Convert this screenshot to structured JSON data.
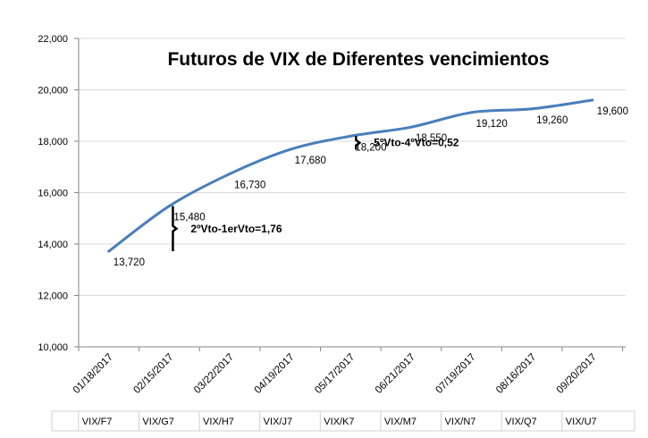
{
  "chart_data": {
    "type": "line",
    "title": "Futuros de VIX de Diferentes vencimientos",
    "xlabel": "",
    "ylabel": "",
    "ylim": [
      10,
      22
    ],
    "y_ticks": [
      10,
      12,
      14,
      16,
      18,
      20,
      22
    ],
    "y_tick_labels": [
      "10,000",
      "12,000",
      "14,000",
      "16,000",
      "18,000",
      "20,000",
      "22,000"
    ],
    "x_tick_labels": [
      "01/18/2017",
      "02/15/2017",
      "03/22/2017",
      "04/19/2017",
      "05/17/2017",
      "06/21/2017",
      "07/19/2017",
      "08/16/2017",
      "09/20/2017"
    ],
    "contracts": [
      "VIX/F7",
      "VIX/G7",
      "VIX/H7",
      "VIX/J7",
      "VIX/K7",
      "VIX/M7",
      "VIX/N7",
      "VIX/Q7",
      "VIX/U7"
    ],
    "series": [
      {
        "values": [
          13.72,
          15.48,
          16.73,
          17.68,
          18.2,
          18.55,
          19.12,
          19.26,
          19.6
        ],
        "data_labels": [
          "13,720",
          "15,480",
          "16,730",
          "17,680",
          "18,200",
          "18,550",
          "19,120",
          "19,260",
          "19,600"
        ]
      }
    ],
    "annotations": [
      {
        "text": "2ºVto-1erVto=1,76",
        "from": 13.72,
        "to": 15.48
      },
      {
        "text": "5ºVto-4ºVto=0,52",
        "from": 17.68,
        "to": 18.2
      }
    ],
    "grid": true,
    "line_color": "#4a7ebb",
    "grid_color": "#d9d9d9",
    "axis_color": "#868686"
  }
}
